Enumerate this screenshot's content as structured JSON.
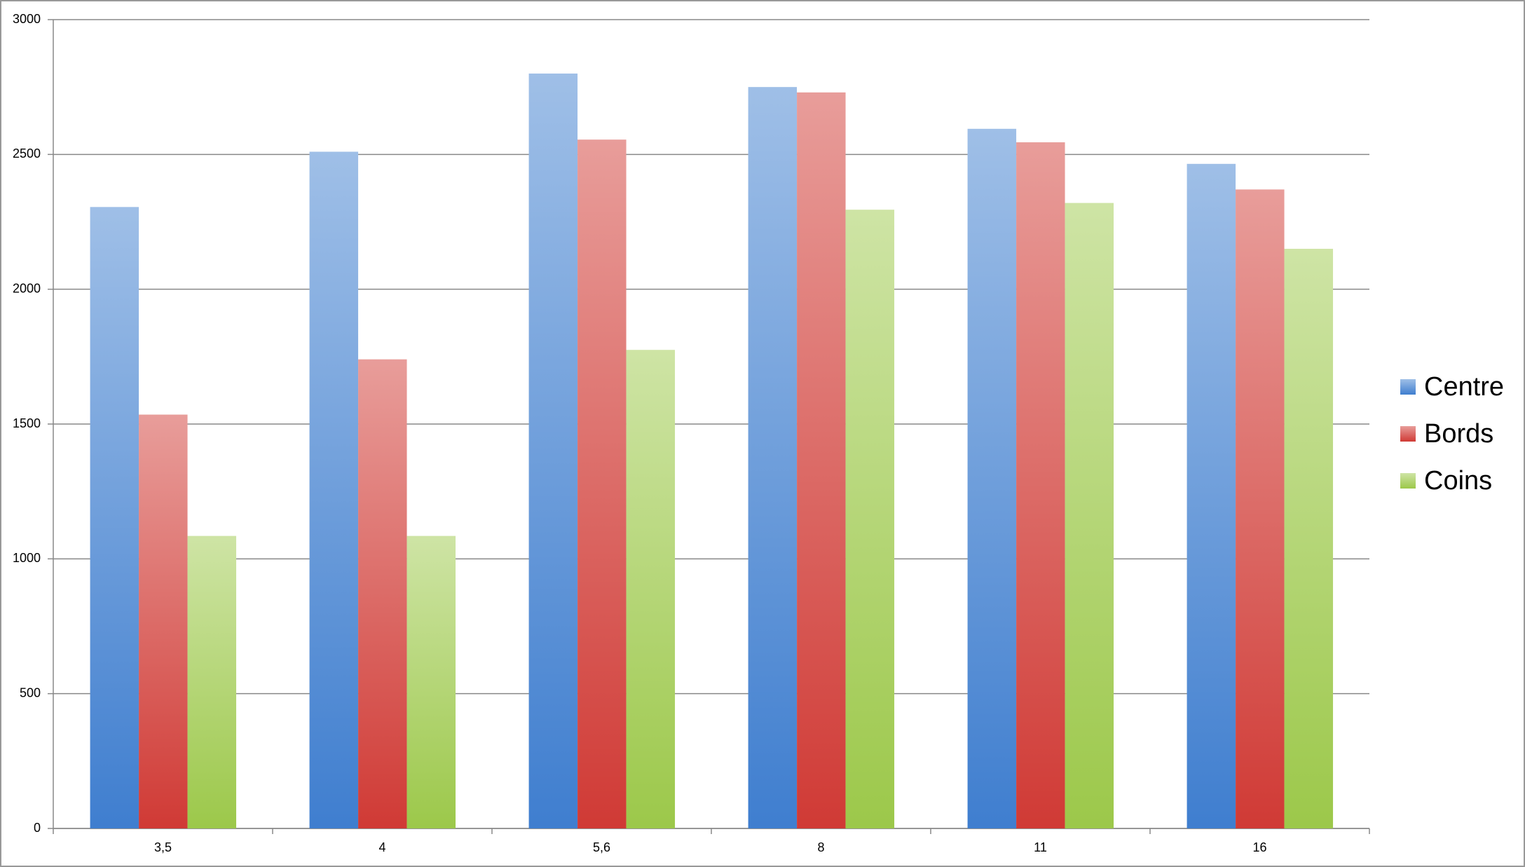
{
  "chart_data": {
    "type": "bar",
    "categories": [
      "3,5",
      "4",
      "5,6",
      "8",
      "11",
      "16"
    ],
    "series": [
      {
        "name": "Centre",
        "color": "#3f7ecf",
        "values": [
          2305,
          2510,
          2800,
          2750,
          2595,
          2465
        ]
      },
      {
        "name": "Bords",
        "color": "#d03a35",
        "values": [
          1535,
          1740,
          2555,
          2730,
          2545,
          2370
        ]
      },
      {
        "name": "Coins",
        "color": "#9cc84a",
        "values": [
          1085,
          1085,
          1775,
          2295,
          2320,
          2150
        ]
      }
    ],
    "ylim": [
      0,
      3000
    ],
    "yticks": [
      0,
      500,
      1000,
      1500,
      2000,
      2500,
      3000
    ],
    "grid": true,
    "legend": "right"
  }
}
